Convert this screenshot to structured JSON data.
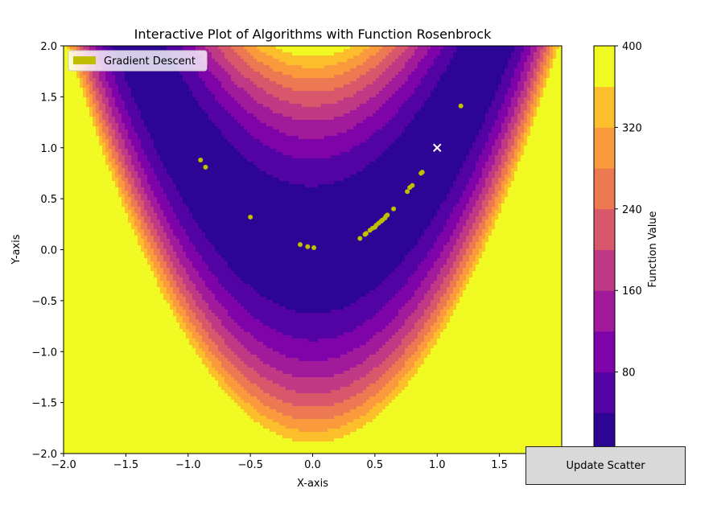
{
  "chart_data": {
    "type": "scatter",
    "title": "Interactive Plot of Algorithms with Function Rosenbrock",
    "xlabel": "X-axis",
    "ylabel": "Y-axis",
    "xlim": [
      -2.0,
      2.0
    ],
    "ylim": [
      -2.0,
      2.0
    ],
    "x_ticks": [
      "−2.0",
      "−1.5",
      "−1.0",
      "−0.5",
      "0.0",
      "0.5",
      "1.0",
      "1.5",
      "2.0"
    ],
    "y_ticks": [
      "−2.0",
      "−1.5",
      "−1.0",
      "−0.5",
      "0.0",
      "0.5",
      "1.0",
      "1.5",
      "2.0"
    ],
    "grid": false,
    "legend_position": "top-left",
    "background": {
      "type": "filled-contour",
      "function": "Rosenbrock",
      "colormap": "plasma",
      "levels": [
        0,
        40,
        80,
        120,
        160,
        200,
        240,
        280,
        320,
        360,
        400
      ],
      "colors": [
        "#0d0887",
        "#41049d",
        "#6a00a8",
        "#8f0da4",
        "#b12a90",
        "#cc4778",
        "#e16462",
        "#f2844b",
        "#fca636",
        "#fcce25"
      ]
    },
    "colorbar": {
      "label": "Function Value",
      "range": [
        0,
        400
      ],
      "ticks": [
        0,
        80,
        160,
        240,
        320,
        400
      ],
      "tick_labels": [
        "",
        "80",
        "160",
        "240",
        "320",
        "400"
      ],
      "bands": [
        {
          "from": 0,
          "to": 40,
          "color": "#2c0594"
        },
        {
          "from": 40,
          "to": 80,
          "color": "#5302a3"
        },
        {
          "from": 80,
          "to": 120,
          "color": "#7e03a8"
        },
        {
          "from": 120,
          "to": 160,
          "color": "#a11a9c"
        },
        {
          "from": 160,
          "to": 200,
          "color": "#bf3984"
        },
        {
          "from": 200,
          "to": 240,
          "color": "#d8576b"
        },
        {
          "from": 240,
          "to": 280,
          "color": "#ed7953"
        },
        {
          "from": 280,
          "to": 320,
          "color": "#fa9a3d"
        },
        {
          "from": 320,
          "to": 360,
          "color": "#fdbe2c"
        },
        {
          "from": 360,
          "to": 400,
          "color": "#f0f921"
        }
      ]
    },
    "series": [
      {
        "name": "Gradient Descent",
        "color": "#bfbf00",
        "marker": "circle",
        "points": [
          [
            -0.9,
            0.88
          ],
          [
            -0.86,
            0.81
          ],
          [
            -0.5,
            0.32
          ],
          [
            -0.1,
            0.05
          ],
          [
            -0.04,
            0.03
          ],
          [
            0.01,
            0.02
          ],
          [
            0.38,
            0.11
          ],
          [
            0.42,
            0.15
          ],
          [
            0.43,
            0.16
          ],
          [
            0.46,
            0.19
          ],
          [
            0.48,
            0.21
          ],
          [
            0.5,
            0.22
          ],
          [
            0.51,
            0.24
          ],
          [
            0.53,
            0.26
          ],
          [
            0.55,
            0.28
          ],
          [
            0.56,
            0.29
          ],
          [
            0.58,
            0.31
          ],
          [
            0.59,
            0.33
          ],
          [
            0.6,
            0.34
          ],
          [
            0.65,
            0.4
          ],
          [
            0.76,
            0.57
          ],
          [
            0.78,
            0.61
          ],
          [
            0.8,
            0.63
          ],
          [
            0.87,
            0.75
          ],
          [
            0.88,
            0.76
          ],
          [
            1.19,
            1.41
          ]
        ]
      }
    ],
    "optimum_marker": {
      "x": 1.0,
      "y": 1.0,
      "symbol": "x",
      "color": "#ffffff"
    }
  },
  "controls": {
    "update_label": "Update Scatter"
  }
}
